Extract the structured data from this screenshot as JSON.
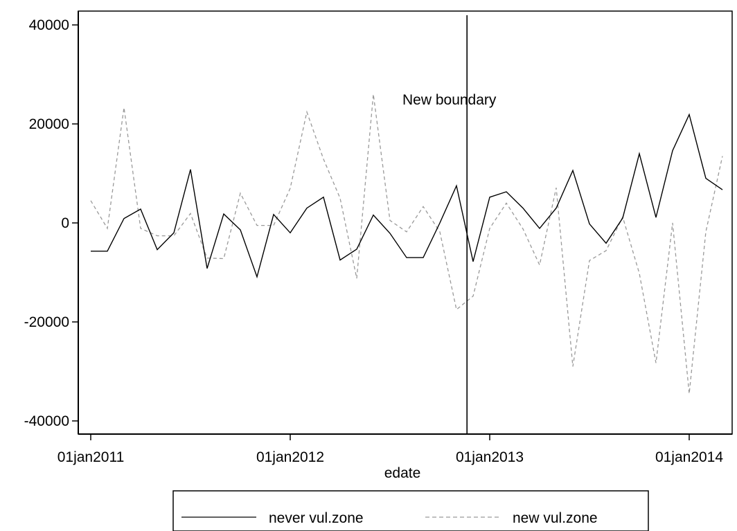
{
  "chart_data": {
    "type": "line",
    "title": "",
    "xlabel": "edate",
    "ylabel": "",
    "x_tick_labels": [
      "01jan2011",
      "01jan2012",
      "01jan2013",
      "01jan2014"
    ],
    "y_tick_labels": [
      "40000",
      "20000",
      "0",
      "-20000",
      "-40000"
    ],
    "y_ticks": [
      40000,
      20000,
      0,
      -20000,
      -40000
    ],
    "ylim": [
      -42000,
      42000
    ],
    "x_start": "2011-01",
    "x_end": "2014-03",
    "x": [
      "2011-01",
      "2011-02",
      "2011-03",
      "2011-04",
      "2011-05",
      "2011-06",
      "2011-07",
      "2011-08",
      "2011-09",
      "2011-10",
      "2011-11",
      "2011-12",
      "2012-01",
      "2012-02",
      "2012-03",
      "2012-04",
      "2012-05",
      "2012-06",
      "2012-07",
      "2012-08",
      "2012-09",
      "2012-10",
      "2012-11",
      "2012-12",
      "2013-01",
      "2013-02",
      "2013-03",
      "2013-04",
      "2013-05",
      "2013-06",
      "2013-07",
      "2013-08",
      "2013-09",
      "2013-10",
      "2013-11",
      "2013-12",
      "2014-01",
      "2014-02",
      "2014-03"
    ],
    "series": [
      {
        "name": "never vul.zone",
        "style": "solid",
        "color": "#000000",
        "values": [
          -5700,
          -5700,
          900,
          2800,
          -5400,
          -2000,
          10800,
          -9200,
          1800,
          -1400,
          -10900,
          1700,
          -2000,
          3000,
          5200,
          -7500,
          -5300,
          1600,
          -2100,
          -7000,
          -7000,
          0,
          7500,
          -7800,
          5200,
          6300,
          3000,
          -1100,
          3000,
          10600,
          -200,
          -4100,
          1000,
          14000,
          1100,
          14600,
          21900,
          9000,
          6700
        ]
      },
      {
        "name": "new vul.zone",
        "style": "dashed",
        "color": "#999999",
        "values": [
          4500,
          -1100,
          23300,
          -1100,
          -2600,
          -2600,
          1900,
          -7100,
          -7200,
          6000,
          -500,
          -500,
          7000,
          22400,
          12900,
          5000,
          -11200,
          26000,
          500,
          -1800,
          3300,
          -1800,
          -17500,
          -14800,
          -1100,
          4000,
          -1200,
          -8500,
          7100,
          -29000,
          -7600,
          -5600,
          1200,
          -10200,
          -28300,
          0,
          -34500,
          -1800,
          13500
        ]
      }
    ],
    "annotations": [
      {
        "type": "vline",
        "x": "2012-11-20",
        "text": "New boundary"
      }
    ],
    "grid": false,
    "legend": {
      "position": "bottom",
      "entries": [
        "never vul.zone",
        "new vul.zone"
      ]
    }
  }
}
